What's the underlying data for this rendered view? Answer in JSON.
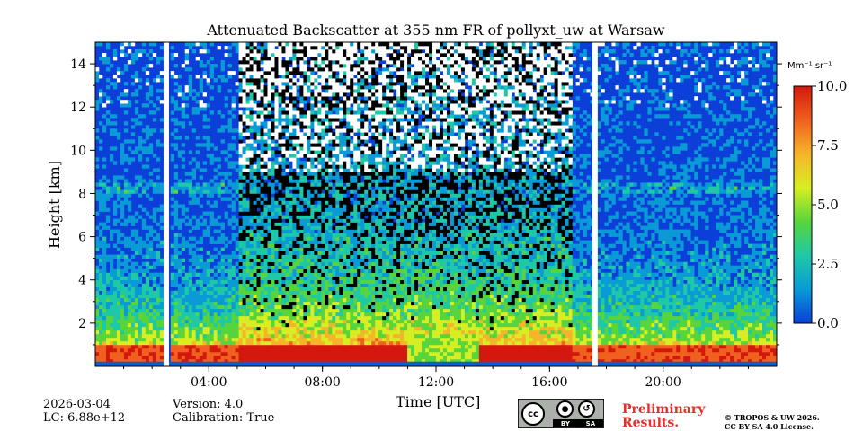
{
  "chart_data": {
    "type": "heatmap",
    "title": "Attenuated Backscatter at 355 nm FR of pollyxt_uw at Warsaw",
    "xlabel": "Time [UTC]",
    "ylabel": "Height [km]",
    "xlim_hours": [
      0,
      24
    ],
    "ylim_km": [
      0,
      15
    ],
    "x_ticks": [
      {
        "value": 4,
        "label": "04:00"
      },
      {
        "value": 8,
        "label": "08:00"
      },
      {
        "value": 12,
        "label": "12:00"
      },
      {
        "value": 16,
        "label": "16:00"
      },
      {
        "value": 20,
        "label": "20:00"
      }
    ],
    "y_ticks": [
      {
        "value": 2,
        "label": "2"
      },
      {
        "value": 4,
        "label": "4"
      },
      {
        "value": 6,
        "label": "6"
      },
      {
        "value": 8,
        "label": "8"
      },
      {
        "value": 10,
        "label": "10"
      },
      {
        "value": 12,
        "label": "12"
      },
      {
        "value": 14,
        "label": "14"
      }
    ],
    "colorbar": {
      "label": "Mm⁻¹ sr⁻¹",
      "min": 0.0,
      "max": 10.0,
      "ticks": [
        {
          "value": 0.0,
          "label": "0.0"
        },
        {
          "value": 2.5,
          "label": "2.5"
        },
        {
          "value": 5.0,
          "label": "5.0"
        },
        {
          "value": 7.5,
          "label": "7.5"
        },
        {
          "value": 10.0,
          "label": "10.0"
        }
      ],
      "colormap": [
        "#0a3fd6",
        "#0a9ad6",
        "#1fc8a6",
        "#58d43c",
        "#d8ee22",
        "#f5b52a",
        "#f0601e",
        "#d4180e"
      ]
    },
    "data_gaps_hours": [
      2.5,
      17.6
    ],
    "boundary_layer_height_km": 1.0,
    "cloud_layer_km": [
      8.0,
      8.5
    ],
    "daytime_noise_window_hours": [
      5.0,
      16.8
    ]
  },
  "footer": {
    "date": "2026-03-04",
    "lc": "LC: 6.88e+12",
    "version": "Version: 4.0",
    "calibration": "Calibration: True",
    "prelim_line1": "Preliminary",
    "prelim_line2": "Results.",
    "copyright_line1": "© TROPOS & UW 2026.",
    "copyright_line2": "CC BY SA 4.0 License.",
    "cc_by": "BY",
    "cc_sa": "SA"
  }
}
